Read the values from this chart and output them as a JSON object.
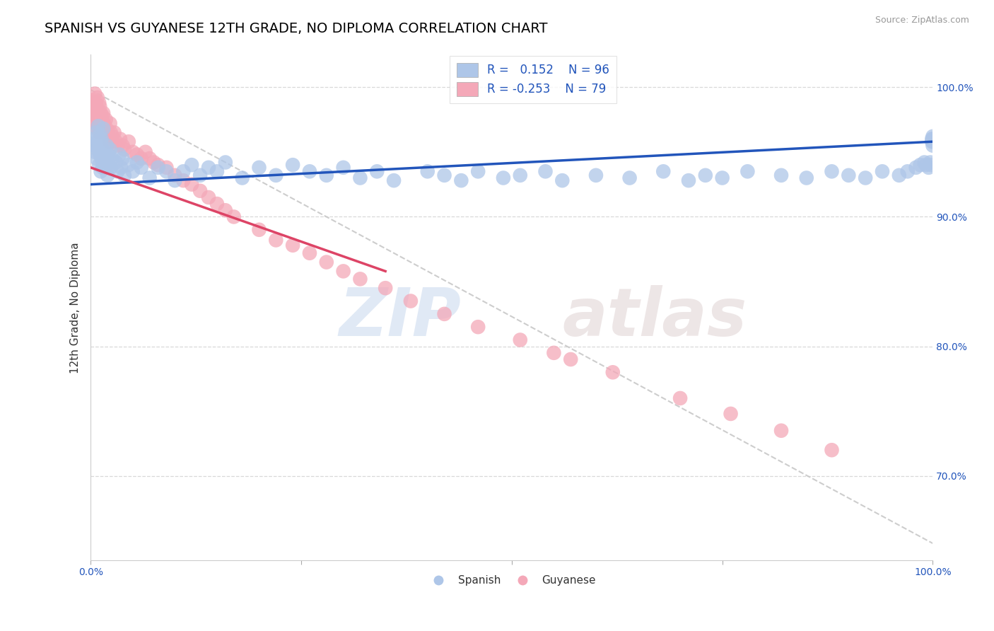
{
  "title": "SPANISH VS GUYANESE 12TH GRADE, NO DIPLOMA CORRELATION CHART",
  "ylabel": "12th Grade, No Diploma",
  "source_text": "Source: ZipAtlas.com",
  "xlim": [
    0.0,
    1.0
  ],
  "ylim": [
    0.635,
    1.025
  ],
  "ytick_positions": [
    0.7,
    0.8,
    0.9,
    1.0
  ],
  "ytick_labels": [
    "70.0%",
    "80.0%",
    "90.0%",
    "100.0%"
  ],
  "blue_color": "#aec6e8",
  "pink_color": "#f4a8b8",
  "blue_line_color": "#2255bb",
  "pink_line_color": "#dd4466",
  "dashed_line_color": "#c8c8c8",
  "watermark_zip": "ZIP",
  "watermark_atlas": "atlas",
  "title_fontsize": 14,
  "axis_label_fontsize": 11,
  "tick_fontsize": 10,
  "blue_R": 0.152,
  "blue_N": 96,
  "pink_R": -0.253,
  "pink_N": 79,
  "blue_scatter_x": [
    0.003,
    0.004,
    0.005,
    0.006,
    0.007,
    0.008,
    0.008,
    0.009,
    0.01,
    0.01,
    0.011,
    0.011,
    0.012,
    0.012,
    0.013,
    0.013,
    0.014,
    0.014,
    0.015,
    0.015,
    0.016,
    0.017,
    0.018,
    0.019,
    0.02,
    0.021,
    0.022,
    0.023,
    0.024,
    0.025,
    0.03,
    0.032,
    0.034,
    0.036,
    0.038,
    0.04,
    0.045,
    0.05,
    0.055,
    0.06,
    0.07,
    0.08,
    0.09,
    0.1,
    0.11,
    0.12,
    0.13,
    0.14,
    0.15,
    0.16,
    0.18,
    0.2,
    0.22,
    0.24,
    0.26,
    0.28,
    0.3,
    0.32,
    0.34,
    0.36,
    0.4,
    0.42,
    0.44,
    0.46,
    0.49,
    0.51,
    0.54,
    0.56,
    0.6,
    0.64,
    0.68,
    0.71,
    0.73,
    0.75,
    0.78,
    0.82,
    0.85,
    0.88,
    0.9,
    0.92,
    0.94,
    0.96,
    0.97,
    0.98,
    0.985,
    0.99,
    0.992,
    0.995,
    0.997,
    0.998,
    0.999,
    0.999,
    1.0,
    1.0,
    1.0,
    1.0
  ],
  "blue_scatter_y": [
    0.96,
    0.955,
    0.95,
    0.965,
    0.945,
    0.958,
    0.952,
    0.97,
    0.94,
    0.955,
    0.948,
    0.963,
    0.935,
    0.958,
    0.945,
    0.96,
    0.938,
    0.952,
    0.942,
    0.968,
    0.938,
    0.95,
    0.945,
    0.955,
    0.932,
    0.948,
    0.94,
    0.952,
    0.938,
    0.945,
    0.942,
    0.935,
    0.948,
    0.938,
    0.945,
    0.932,
    0.94,
    0.935,
    0.942,
    0.938,
    0.93,
    0.938,
    0.935,
    0.928,
    0.935,
    0.94,
    0.932,
    0.938,
    0.935,
    0.942,
    0.93,
    0.938,
    0.932,
    0.94,
    0.935,
    0.932,
    0.938,
    0.93,
    0.935,
    0.928,
    0.935,
    0.932,
    0.928,
    0.935,
    0.93,
    0.932,
    0.935,
    0.928,
    0.932,
    0.93,
    0.935,
    0.928,
    0.932,
    0.93,
    0.935,
    0.932,
    0.93,
    0.935,
    0.932,
    0.93,
    0.935,
    0.932,
    0.935,
    0.938,
    0.94,
    0.942,
    0.94,
    0.938,
    0.942,
    0.94,
    0.96,
    0.958,
    0.962,
    0.958,
    0.96,
    0.955
  ],
  "pink_scatter_x": [
    0.003,
    0.004,
    0.004,
    0.005,
    0.005,
    0.006,
    0.006,
    0.007,
    0.007,
    0.008,
    0.008,
    0.009,
    0.009,
    0.01,
    0.01,
    0.01,
    0.011,
    0.011,
    0.012,
    0.012,
    0.013,
    0.013,
    0.014,
    0.014,
    0.015,
    0.015,
    0.016,
    0.017,
    0.018,
    0.019,
    0.02,
    0.021,
    0.022,
    0.023,
    0.024,
    0.025,
    0.026,
    0.028,
    0.03,
    0.032,
    0.035,
    0.038,
    0.04,
    0.045,
    0.05,
    0.055,
    0.06,
    0.065,
    0.07,
    0.075,
    0.08,
    0.09,
    0.1,
    0.11,
    0.12,
    0.13,
    0.14,
    0.15,
    0.16,
    0.17,
    0.2,
    0.22,
    0.24,
    0.26,
    0.28,
    0.3,
    0.32,
    0.35,
    0.38,
    0.42,
    0.46,
    0.51,
    0.55,
    0.57,
    0.62,
    0.7,
    0.76,
    0.82,
    0.88
  ],
  "pink_scatter_y": [
    0.99,
    0.985,
    0.975,
    0.995,
    0.98,
    0.988,
    0.972,
    0.985,
    0.978,
    0.992,
    0.968,
    0.98,
    0.975,
    0.988,
    0.965,
    0.978,
    0.972,
    0.985,
    0.968,
    0.98,
    0.975,
    0.965,
    0.978,
    0.972,
    0.968,
    0.98,
    0.972,
    0.965,
    0.975,
    0.968,
    0.965,
    0.962,
    0.958,
    0.972,
    0.965,
    0.958,
    0.962,
    0.965,
    0.958,
    0.955,
    0.96,
    0.955,
    0.952,
    0.958,
    0.95,
    0.948,
    0.945,
    0.95,
    0.945,
    0.942,
    0.94,
    0.938,
    0.932,
    0.928,
    0.925,
    0.92,
    0.915,
    0.91,
    0.905,
    0.9,
    0.89,
    0.882,
    0.878,
    0.872,
    0.865,
    0.858,
    0.852,
    0.845,
    0.835,
    0.825,
    0.815,
    0.805,
    0.795,
    0.79,
    0.78,
    0.76,
    0.748,
    0.735,
    0.72
  ],
  "blue_line": {
    "x0": 0.0,
    "x1": 1.0,
    "y0": 0.925,
    "y1": 0.958
  },
  "pink_line": {
    "x0": 0.0,
    "x1": 0.35,
    "y0": 0.938,
    "y1": 0.858
  },
  "dashed_line": {
    "x0": 0.0,
    "x1": 1.0,
    "y0": 0.998,
    "y1": 0.648
  }
}
